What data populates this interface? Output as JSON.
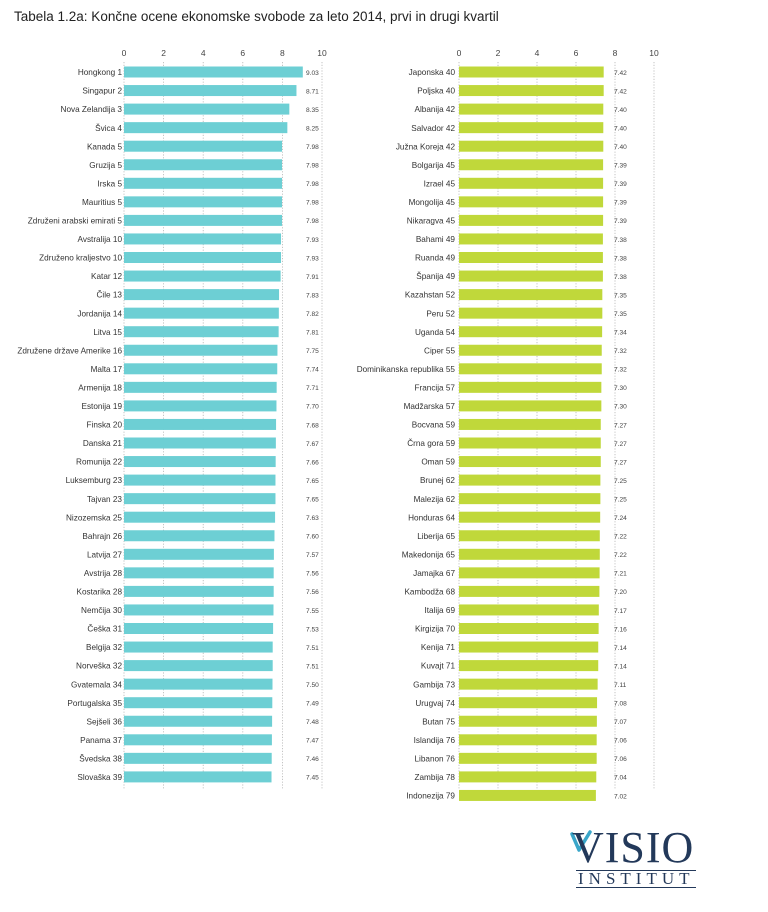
{
  "title": "Tabela 1.2a: Končne ocene ekonomske svobode za leto 2014, prvi in drugi kvartil",
  "logo": {
    "main": "VISIO",
    "sub": "INSTITUT"
  },
  "chart_data": [
    {
      "type": "bar",
      "orientation": "horizontal",
      "xlim": [
        0,
        10
      ],
      "xticks": [
        "0",
        "2",
        "4",
        "6",
        "8",
        "10"
      ],
      "color": "#6dcfd4",
      "categories": [
        "Hongkong 1",
        "Singapur 2",
        "Nova Zelandija 3",
        "Švica 4",
        "Kanada 5",
        "Gruzija 5",
        "Irska 5",
        "Mauritius 5",
        "Združeni arabski emirati 5",
        "Avstralija 10",
        "Združeno kraljestvo 10",
        "Katar 12",
        "Čile 13",
        "Jordanija 14",
        "Litva 15",
        "Združene države Amerike 16",
        "Malta 17",
        "Armenija 18",
        "Estonija 19",
        "Finska 20",
        "Danska 21",
        "Romunija 22",
        "Luksemburg 23",
        "Tajvan 23",
        "Nizozemska 25",
        "Bahrajn 26",
        "Latvija 27",
        "Avstrija 28",
        "Kostarika 28",
        "Nemčija 30",
        "Češka 31",
        "Belgija 32",
        "Norveška 32",
        "Gvatemala 34",
        "Portugalska 35",
        "Sejšeli 36",
        "Panama 37",
        "Švedska 38",
        "Slovaška 39"
      ],
      "values": [
        9.03,
        8.71,
        8.35,
        8.25,
        7.98,
        7.98,
        7.98,
        7.98,
        7.98,
        7.93,
        7.93,
        7.91,
        7.83,
        7.82,
        7.81,
        7.75,
        7.74,
        7.71,
        7.7,
        7.68,
        7.67,
        7.66,
        7.65,
        7.65,
        7.63,
        7.6,
        7.57,
        7.56,
        7.56,
        7.55,
        7.53,
        7.51,
        7.51,
        7.5,
        7.49,
        7.48,
        7.47,
        7.46,
        7.45
      ],
      "value_labels": [
        "9.03",
        "8.71",
        "8.35",
        "8.25",
        "7.98",
        "7.98",
        "7.98",
        "7.98",
        "7.98",
        "7.93",
        "7.93",
        "7.91",
        "7.83",
        "7.82",
        "7.81",
        "7.75",
        "7.74",
        "7.71",
        "7.70",
        "7.68",
        "7.67",
        "7.66",
        "7.65",
        "7.65",
        "7.63",
        "7.60",
        "7.57",
        "7.56",
        "7.56",
        "7.55",
        "7.53",
        "7.51",
        "7.51",
        "7.50",
        "7.49",
        "7.48",
        "7.47",
        "7.46",
        "7.45"
      ]
    },
    {
      "type": "bar",
      "orientation": "horizontal",
      "xlim": [
        0,
        10
      ],
      "xticks": [
        "0",
        "2",
        "4",
        "6",
        "8",
        "10"
      ],
      "color": "#c0d83a",
      "categories": [
        "Japonska 40",
        "Poljska 40",
        "Albanija 42",
        "Salvador 42",
        "Južna Koreja 42",
        "Bolgarija 45",
        "Izrael 45",
        "Mongolija 45",
        "Nikaragva 45",
        "Bahami 49",
        "Ruanda 49",
        "Španija 49",
        "Kazahstan 52",
        "Peru 52",
        "Uganda 54",
        "Ciper 55",
        "Dominikanska republika 55",
        "Francija 57",
        "Madžarska 57",
        "Bocvana 59",
        "Črna gora 59",
        "Oman 59",
        "Brunej 62",
        "Malezija 62",
        "Honduras 64",
        "Liberija 65",
        "Makedonija 65",
        "Jamajka 67",
        "Kambodža 68",
        "Italija 69",
        "Kirgizija 70",
        "Kenija 71",
        "Kuvajt 71",
        "Gambija 73",
        "Urugvaj 74",
        "Butan 75",
        "Islandija 76",
        "Libanon 76",
        "Zambija 78",
        "Indonezija 79"
      ],
      "values": [
        7.42,
        7.42,
        7.4,
        7.4,
        7.4,
        7.39,
        7.39,
        7.39,
        7.39,
        7.38,
        7.38,
        7.38,
        7.35,
        7.35,
        7.34,
        7.32,
        7.32,
        7.3,
        7.3,
        7.27,
        7.27,
        7.27,
        7.25,
        7.25,
        7.24,
        7.22,
        7.22,
        7.21,
        7.2,
        7.17,
        7.16,
        7.14,
        7.14,
        7.11,
        7.08,
        7.07,
        7.06,
        7.06,
        7.04,
        7.02
      ],
      "value_labels": [
        "7.42",
        "7.42",
        "7.40",
        "7.40",
        "7.40",
        "7.39",
        "7.39",
        "7.39",
        "7.39",
        "7.38",
        "7.38",
        "7.38",
        "7.35",
        "7.35",
        "7.34",
        "7.32",
        "7.32",
        "7.30",
        "7.30",
        "7.27",
        "7.27",
        "7.27",
        "7.25",
        "7.25",
        "7.24",
        "7.22",
        "7.22",
        "7.21",
        "7.20",
        "7.17",
        "7.16",
        "7.14",
        "7.14",
        "7.11",
        "7.08",
        "7.07",
        "7.06",
        "7.06",
        "7.04",
        "7.02"
      ]
    }
  ]
}
